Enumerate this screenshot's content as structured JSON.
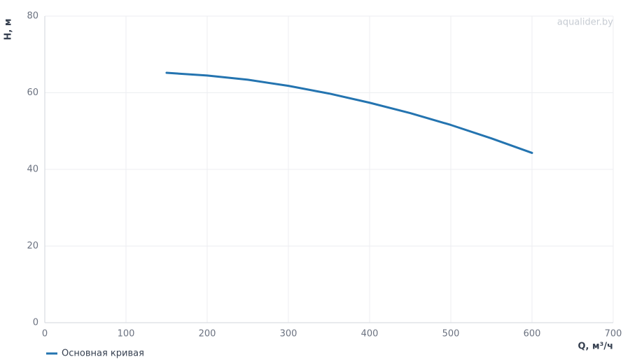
{
  "chart_data": {
    "type": "line",
    "x_label": "Q, м³/ч",
    "y_label": "H, м",
    "watermark": "aqualider.by",
    "x": [
      150,
      200,
      250,
      300,
      350,
      400,
      450,
      500,
      550,
      600
    ],
    "series": [
      {
        "name": "Основная кривая",
        "color": "#2474b0",
        "values": [
          65.2,
          64.5,
          63.4,
          61.8,
          59.8,
          57.4,
          54.7,
          51.6,
          48.1,
          44.3
        ]
      }
    ],
    "xlim": [
      0,
      700
    ],
    "xticks": [
      0,
      100,
      200,
      300,
      400,
      500,
      600,
      700
    ],
    "ylim": [
      0,
      80
    ],
    "yticks": [
      0,
      20,
      40,
      60,
      80
    ],
    "grid": true,
    "legend": "bottom-left"
  }
}
